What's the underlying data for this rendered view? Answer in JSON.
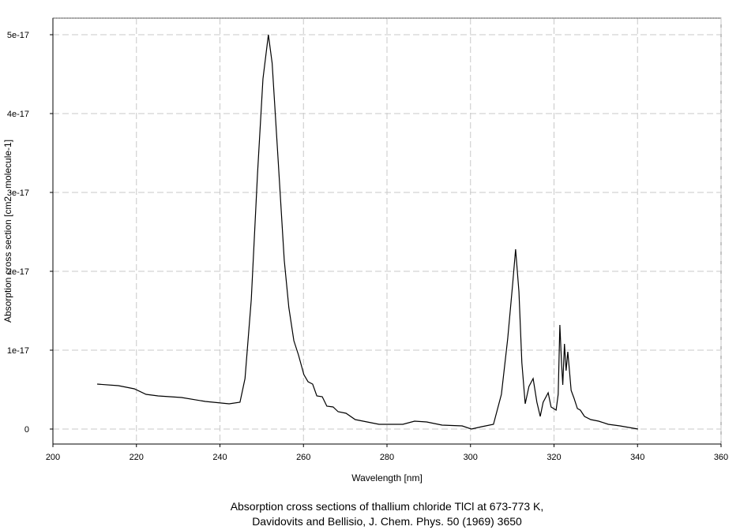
{
  "chart_data": {
    "type": "line",
    "title": "Absorption cross sections of thallium chloride TlCl at 673-773 K,",
    "subtitle": "Davidovits and Bellisio, J. Chem. Phys. 50 (1969) 3650",
    "x_label": "Wavelength [nm]",
    "y_label": "Absorption cross section [cm2 . molecule-1]",
    "xlim": [
      200,
      360
    ],
    "xticks": [
      200,
      220,
      240,
      260,
      280,
      300,
      320,
      340,
      360
    ],
    "ylim": [
      -1.9e-18,
      5.21e-17
    ],
    "yticks": [
      0,
      1e-17,
      2e-17,
      3e-17,
      4e-17,
      5e-17
    ],
    "grid": true,
    "series": [
      {
        "color": "#000000",
        "x": [
          210.6,
          215.7,
          219.5,
          222.3,
          225.2,
          230.8,
          236.5,
          242.2,
          244.8,
          246,
          247.5,
          249,
          250.3,
          251.6,
          252.5,
          253.9,
          255.4,
          256.5,
          257.7,
          258.8,
          260.1,
          261.1,
          262.2,
          263.2,
          264.5,
          265.6,
          267.1,
          268.3,
          270.2,
          272.4,
          278.1,
          283.8,
          286.6,
          289.5,
          293.2,
          298,
          300.2,
          302.7,
          305.5,
          307.4,
          308.9,
          310.1,
          310.8,
          311.6,
          312.3,
          313.1,
          314,
          315,
          315.9,
          316.7,
          317.4,
          318.6,
          319.3,
          320.5,
          321,
          321.4,
          321.8,
          322.1,
          322.5,
          322.9,
          323.3,
          323.7,
          324.1,
          324.8,
          325.6,
          326.3,
          327.3,
          328.8,
          330.7,
          333,
          335.8,
          340.1
        ],
        "values": [
          5.7e-18,
          5.5e-18,
          5.1e-18,
          4.4e-18,
          4.2e-18,
          4e-18,
          3.5e-18,
          3.2e-18,
          3.4e-18,
          6.4e-18,
          1.64e-17,
          3.24e-17,
          4.44e-17,
          5e-17,
          4.64e-17,
          3.44e-17,
          2.14e-17,
          1.54e-17,
          1.12e-17,
          9.4e-18,
          6.9e-18,
          6e-18,
          5.7e-18,
          4.2e-18,
          4.1e-18,
          2.9e-18,
          2.8e-18,
          2.2e-18,
          2e-18,
          1.2e-18,
          6e-19,
          6e-19,
          1e-18,
          9e-19,
          5e-19,
          4e-19,
          0,
          3e-19,
          6e-19,
          4.4e-18,
          1.14e-17,
          1.84e-17,
          2.28e-17,
          1.74e-17,
          8.4e-18,
          3.2e-18,
          5.4e-18,
          6.4e-18,
          3.4e-18,
          1.6e-18,
          3.4e-18,
          4.6e-18,
          2.8e-18,
          2.4e-18,
          4.4e-18,
          1.32e-17,
          8.4e-18,
          5.6e-18,
          1.08e-17,
          7.4e-18,
          9.8e-18,
          7.4e-18,
          4.9e-18,
          3.9e-18,
          2.6e-18,
          2.4e-18,
          1.6e-18,
          1.2e-18,
          1e-18,
          6e-19,
          4e-19,
          0
        ]
      }
    ]
  }
}
